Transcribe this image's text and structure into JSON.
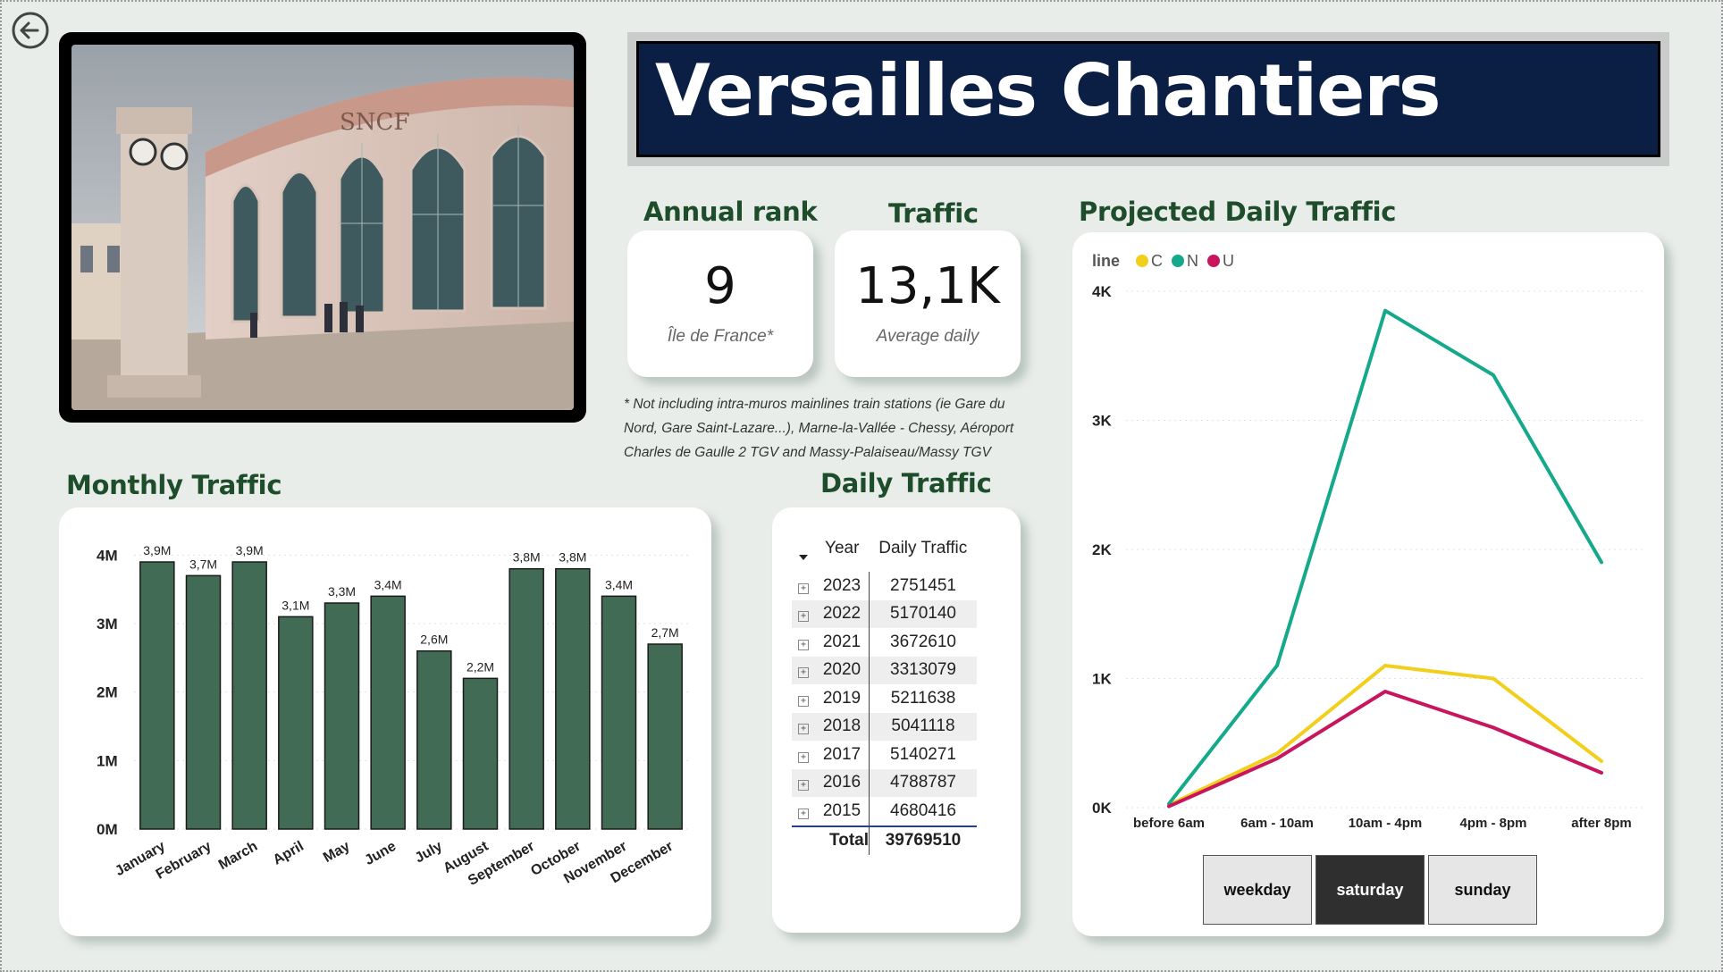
{
  "header": {
    "title": "Versailles Chantiers"
  },
  "photo": {
    "sign_text": "SNCF"
  },
  "kpis": [
    {
      "title": "Annual rank",
      "value": "9",
      "subtitle": "Île de France*"
    },
    {
      "title": "Traffic",
      "value": "13,1K",
      "subtitle": "Average daily"
    }
  ],
  "footnote": "* Not including intra-muros mainlines train stations (ie Gare du Nord, Gare Saint-Lazare...), Marne-la-Vallée - Chessy, Aéroport Charles de Gaulle 2 TGV and Massy-Palaiseau/Massy TGV",
  "monthly": {
    "title": "Monthly Traffic",
    "chart_data": {
      "type": "bar",
      "categories": [
        "January",
        "February",
        "March",
        "April",
        "May",
        "June",
        "July",
        "August",
        "September",
        "October",
        "November",
        "December"
      ],
      "values": [
        3.9,
        3.7,
        3.9,
        3.1,
        3.3,
        3.4,
        2.6,
        2.2,
        3.8,
        3.8,
        3.4,
        2.7
      ],
      "value_unit": "M",
      "data_labels": [
        "3,9M",
        "3,7M",
        "3,9M",
        "3,1M",
        "3,3M",
        "3,4M",
        "2,6M",
        "2,2M",
        "3,8M",
        "3,8M",
        "3,4M",
        "2,7M"
      ],
      "yticks": [
        "0M",
        "1M",
        "2M",
        "3M",
        "4M"
      ],
      "ylim": [
        0,
        4.2
      ],
      "color": "#426b55"
    }
  },
  "daily_table": {
    "title": "Daily Traffic",
    "headers": [
      "Year",
      "Daily Traffic"
    ],
    "rows": [
      {
        "year": "2023",
        "value": "2751451"
      },
      {
        "year": "2022",
        "value": "5170140"
      },
      {
        "year": "2021",
        "value": "3672610"
      },
      {
        "year": "2020",
        "value": "3313079"
      },
      {
        "year": "2019",
        "value": "5211638"
      },
      {
        "year": "2018",
        "value": "5041118"
      },
      {
        "year": "2017",
        "value": "5140271"
      },
      {
        "year": "2016",
        "value": "4788787"
      },
      {
        "year": "2015",
        "value": "4680416"
      }
    ],
    "total_label": "Total",
    "total_value": "39769510",
    "expander_symbol": "+"
  },
  "projected": {
    "title": "Projected Daily Traffic",
    "legend_title": "line",
    "chart_data": {
      "type": "line",
      "categories": [
        "before 6am",
        "6am - 10am",
        "10am - 4pm",
        "4pm - 8pm",
        "after 8pm"
      ],
      "yticks": [
        "0K",
        "1K",
        "2K",
        "3K",
        "4K"
      ],
      "ylim": [
        0,
        4
      ],
      "series": [
        {
          "name": "C",
          "color": "#f2cf1d",
          "values": [
            0.02,
            0.42,
            1.1,
            1.0,
            0.36
          ]
        },
        {
          "name": "N",
          "color": "#15a98b",
          "values": [
            0.03,
            1.1,
            3.85,
            3.35,
            1.9
          ]
        },
        {
          "name": "U",
          "color": "#c8155e",
          "values": [
            0.01,
            0.38,
            0.9,
            0.62,
            0.27
          ]
        }
      ]
    }
  },
  "slicer": {
    "options": [
      "weekday",
      "saturday",
      "sunday"
    ],
    "selected": "saturday"
  }
}
